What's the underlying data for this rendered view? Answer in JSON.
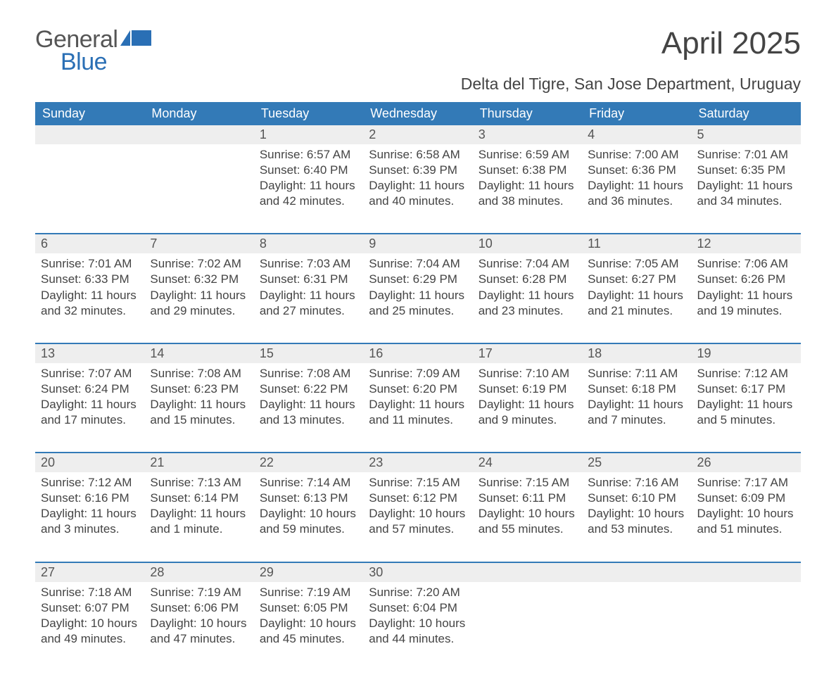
{
  "logo": {
    "word1": "General",
    "word2": "Blue"
  },
  "title": "April 2025",
  "subtitle": "Delta del Tigre, San Jose Department, Uruguay",
  "colors": {
    "header_bg": "#337ab7",
    "header_text": "#ffffff",
    "daynum_bg": "#eeeeee",
    "row_border": "#337ab7",
    "body_text": "#444444",
    "logo_word1": "#555555",
    "logo_word2": "#2a6fb5",
    "logo_shape": "#2a6fb5",
    "background": "#ffffff"
  },
  "fonts": {
    "family": "Arial, Helvetica, sans-serif",
    "title_size_pt": 33,
    "subtitle_size_pt": 17,
    "dayname_size_pt": 14,
    "daynum_size_pt": 14,
    "detail_size_pt": 13
  },
  "day_names": [
    "Sunday",
    "Monday",
    "Tuesday",
    "Wednesday",
    "Thursday",
    "Friday",
    "Saturday"
  ],
  "weeks": [
    [
      {
        "n": "",
        "sr": "",
        "ss": "",
        "dl": ""
      },
      {
        "n": "",
        "sr": "",
        "ss": "",
        "dl": ""
      },
      {
        "n": "1",
        "sr": "6:57 AM",
        "ss": "6:40 PM",
        "dl": "11 hours and 42 minutes."
      },
      {
        "n": "2",
        "sr": "6:58 AM",
        "ss": "6:39 PM",
        "dl": "11 hours and 40 minutes."
      },
      {
        "n": "3",
        "sr": "6:59 AM",
        "ss": "6:38 PM",
        "dl": "11 hours and 38 minutes."
      },
      {
        "n": "4",
        "sr": "7:00 AM",
        "ss": "6:36 PM",
        "dl": "11 hours and 36 minutes."
      },
      {
        "n": "5",
        "sr": "7:01 AM",
        "ss": "6:35 PM",
        "dl": "11 hours and 34 minutes."
      }
    ],
    [
      {
        "n": "6",
        "sr": "7:01 AM",
        "ss": "6:33 PM",
        "dl": "11 hours and 32 minutes."
      },
      {
        "n": "7",
        "sr": "7:02 AM",
        "ss": "6:32 PM",
        "dl": "11 hours and 29 minutes."
      },
      {
        "n": "8",
        "sr": "7:03 AM",
        "ss": "6:31 PM",
        "dl": "11 hours and 27 minutes."
      },
      {
        "n": "9",
        "sr": "7:04 AM",
        "ss": "6:29 PM",
        "dl": "11 hours and 25 minutes."
      },
      {
        "n": "10",
        "sr": "7:04 AM",
        "ss": "6:28 PM",
        "dl": "11 hours and 23 minutes."
      },
      {
        "n": "11",
        "sr": "7:05 AM",
        "ss": "6:27 PM",
        "dl": "11 hours and 21 minutes."
      },
      {
        "n": "12",
        "sr": "7:06 AM",
        "ss": "6:26 PM",
        "dl": "11 hours and 19 minutes."
      }
    ],
    [
      {
        "n": "13",
        "sr": "7:07 AM",
        "ss": "6:24 PM",
        "dl": "11 hours and 17 minutes."
      },
      {
        "n": "14",
        "sr": "7:08 AM",
        "ss": "6:23 PM",
        "dl": "11 hours and 15 minutes."
      },
      {
        "n": "15",
        "sr": "7:08 AM",
        "ss": "6:22 PM",
        "dl": "11 hours and 13 minutes."
      },
      {
        "n": "16",
        "sr": "7:09 AM",
        "ss": "6:20 PM",
        "dl": "11 hours and 11 minutes."
      },
      {
        "n": "17",
        "sr": "7:10 AM",
        "ss": "6:19 PM",
        "dl": "11 hours and 9 minutes."
      },
      {
        "n": "18",
        "sr": "7:11 AM",
        "ss": "6:18 PM",
        "dl": "11 hours and 7 minutes."
      },
      {
        "n": "19",
        "sr": "7:12 AM",
        "ss": "6:17 PM",
        "dl": "11 hours and 5 minutes."
      }
    ],
    [
      {
        "n": "20",
        "sr": "7:12 AM",
        "ss": "6:16 PM",
        "dl": "11 hours and 3 minutes."
      },
      {
        "n": "21",
        "sr": "7:13 AM",
        "ss": "6:14 PM",
        "dl": "11 hours and 1 minute."
      },
      {
        "n": "22",
        "sr": "7:14 AM",
        "ss": "6:13 PM",
        "dl": "10 hours and 59 minutes."
      },
      {
        "n": "23",
        "sr": "7:15 AM",
        "ss": "6:12 PM",
        "dl": "10 hours and 57 minutes."
      },
      {
        "n": "24",
        "sr": "7:15 AM",
        "ss": "6:11 PM",
        "dl": "10 hours and 55 minutes."
      },
      {
        "n": "25",
        "sr": "7:16 AM",
        "ss": "6:10 PM",
        "dl": "10 hours and 53 minutes."
      },
      {
        "n": "26",
        "sr": "7:17 AM",
        "ss": "6:09 PM",
        "dl": "10 hours and 51 minutes."
      }
    ],
    [
      {
        "n": "27",
        "sr": "7:18 AM",
        "ss": "6:07 PM",
        "dl": "10 hours and 49 minutes."
      },
      {
        "n": "28",
        "sr": "7:19 AM",
        "ss": "6:06 PM",
        "dl": "10 hours and 47 minutes."
      },
      {
        "n": "29",
        "sr": "7:19 AM",
        "ss": "6:05 PM",
        "dl": "10 hours and 45 minutes."
      },
      {
        "n": "30",
        "sr": "7:20 AM",
        "ss": "6:04 PM",
        "dl": "10 hours and 44 minutes."
      },
      {
        "n": "",
        "sr": "",
        "ss": "",
        "dl": ""
      },
      {
        "n": "",
        "sr": "",
        "ss": "",
        "dl": ""
      },
      {
        "n": "",
        "sr": "",
        "ss": "",
        "dl": ""
      }
    ]
  ],
  "labels": {
    "sunrise": "Sunrise:",
    "sunset": "Sunset:",
    "daylight": "Daylight:"
  }
}
